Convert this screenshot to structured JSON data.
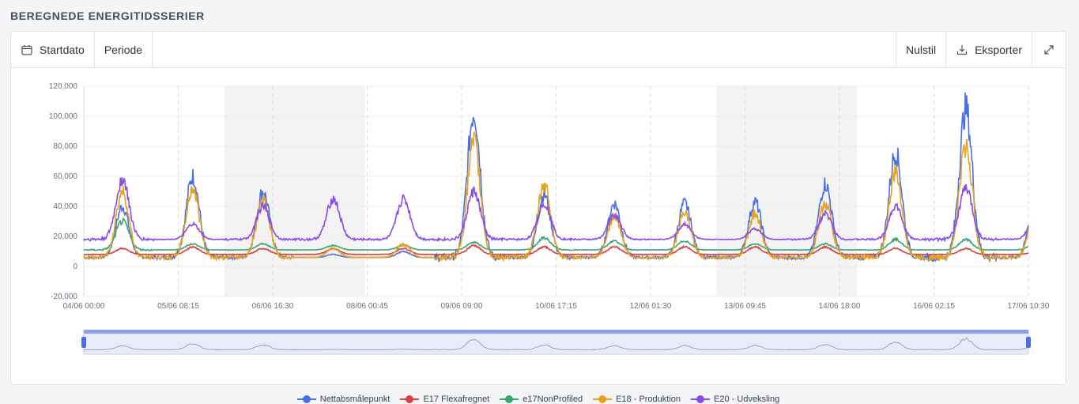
{
  "section": {
    "title": "BEREGNEDE ENERGITIDSSERIER"
  },
  "toolbar": {
    "startdate_label": "Startdato",
    "period_label": "Periode",
    "reset_label": "Nulstil",
    "export_label": "Eksporter"
  },
  "icons": {
    "calendar": "calendar-icon",
    "download": "download-icon",
    "fullscreen": "expand-icon"
  },
  "chart_data": {
    "type": "line",
    "ylim": [
      -20000,
      120000
    ],
    "yticks": [
      "120,000",
      "100,000",
      "80,000",
      "60,000",
      "40,000",
      "20,000",
      "0",
      "-20,000"
    ],
    "xticks": [
      "04/06 00:00",
      "05/06 08:15",
      "06/06 16:30",
      "08/06 00:45",
      "09/06 09:00",
      "10/06 17:15",
      "12/06 01:30",
      "13/06 09:45",
      "14/06 18:00",
      "16/06 02:15",
      "17/06 10:30"
    ],
    "x_range_days": [
      0,
      13.44
    ],
    "weekend_shading_days": [
      [
        2,
        4
      ],
      [
        9,
        11
      ]
    ],
    "grid": true,
    "legend_position": "bottom",
    "series": [
      {
        "name": "Nettabsmålepunkt",
        "color": "#4a6fe3",
        "daily_peaks": [
          40000,
          60000,
          50000,
          8000,
          10000,
          103000,
          48000,
          42000,
          42000,
          43000,
          55000,
          76000,
          105000,
          50000
        ],
        "base": 6000
      },
      {
        "name": "E17 Flexafregnet",
        "color": "#dc3f3f",
        "daily_peaks": [
          12000,
          13000,
          12000,
          12000,
          12000,
          14000,
          13000,
          13000,
          13000,
          13000,
          13000,
          12000,
          12000,
          10000
        ],
        "base": 8000
      },
      {
        "name": "e17NonProfiled",
        "color": "#3aa56b",
        "daily_peaks": [
          30000,
          15000,
          15000,
          14000,
          14000,
          16000,
          19000,
          17000,
          17000,
          15000,
          15000,
          18000,
          18000,
          16000
        ],
        "base": 11000
      },
      {
        "name": "E18 - Produktion",
        "color": "#e8a21c",
        "daily_peaks": [
          50000,
          52000,
          45000,
          12000,
          15000,
          82000,
          55000,
          34000,
          35000,
          35000,
          42000,
          62000,
          80000,
          44000
        ],
        "base": 6000
      },
      {
        "name": "E20 - Udveksling",
        "color": "#8a4ce6",
        "daily_peaks": [
          58000,
          28000,
          40000,
          45000,
          45000,
          50000,
          42000,
          34000,
          28000,
          25000,
          35000,
          40000,
          52000,
          35000
        ],
        "base": 18000
      }
    ]
  }
}
